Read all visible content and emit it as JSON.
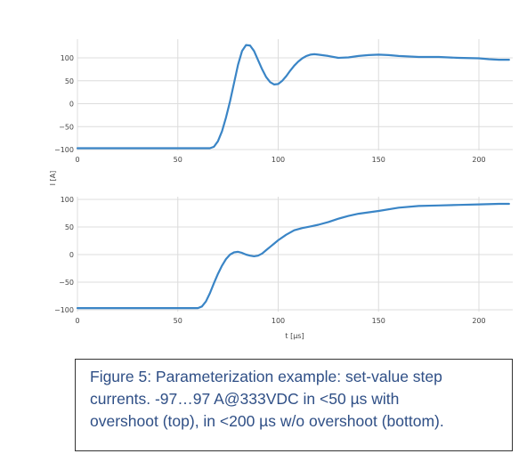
{
  "chart_data": [
    {
      "type": "line",
      "xlabel": "",
      "ylabel": "I [A]",
      "xlim": [
        0,
        215
      ],
      "ylim": [
        -105,
        140
      ],
      "xticks": [
        0,
        50,
        100,
        150,
        200
      ],
      "yticks": [
        -100,
        -50,
        0,
        50,
        100
      ],
      "grid": true,
      "color": "#3a85c6",
      "series": [
        {
          "x": [
            0,
            50,
            66,
            68,
            70,
            72,
            74,
            76,
            78,
            80,
            82,
            84,
            86,
            88,
            90,
            92,
            94,
            96,
            98,
            100,
            102,
            104,
            106,
            108,
            110,
            112,
            114,
            116,
            118,
            120,
            125,
            130,
            135,
            140,
            145,
            150,
            155,
            160,
            170,
            180,
            190,
            200,
            205,
            210,
            215
          ],
          "values": [
            -97,
            -97,
            -97,
            -94,
            -82,
            -60,
            -30,
            5,
            45,
            85,
            115,
            128,
            127,
            115,
            95,
            75,
            58,
            47,
            42,
            43,
            50,
            60,
            72,
            83,
            92,
            99,
            104,
            107,
            108,
            107,
            104,
            100,
            101,
            104,
            106,
            107,
            106,
            104,
            102,
            102,
            100,
            99,
            97,
            96,
            96
          ]
        }
      ]
    },
    {
      "type": "line",
      "xlabel": "t [µs]",
      "ylabel": "",
      "xlim": [
        0,
        215
      ],
      "ylim": [
        -105,
        105
      ],
      "xticks": [
        0,
        50,
        100,
        150,
        200
      ],
      "yticks": [
        -100,
        -50,
        0,
        50,
        100
      ],
      "grid": true,
      "color": "#3a85c6",
      "series": [
        {
          "x": [
            0,
            30,
            60,
            62,
            64,
            66,
            68,
            70,
            72,
            74,
            76,
            78,
            80,
            82,
            84,
            86,
            88,
            90,
            92,
            94,
            96,
            98,
            100,
            104,
            108,
            112,
            116,
            120,
            125,
            130,
            135,
            140,
            150,
            160,
            170,
            180,
            190,
            200,
            210,
            215
          ],
          "values": [
            -97,
            -97,
            -97,
            -94,
            -85,
            -70,
            -52,
            -35,
            -20,
            -8,
            0,
            4,
            5,
            3,
            0,
            -2,
            -3,
            -2,
            2,
            8,
            14,
            20,
            26,
            36,
            44,
            48,
            51,
            54,
            59,
            65,
            70,
            74,
            79,
            85,
            88,
            89,
            90,
            91,
            92,
            92
          ]
        }
      ]
    }
  ],
  "caption": {
    "line1": "Figure 5: Parameterization example: set-value step",
    "line2": "currents.  -97…97 A@333VDC in <50 µs with",
    "line3": "overshoot (top), in <200 µs w/o overshoot (bottom)."
  }
}
